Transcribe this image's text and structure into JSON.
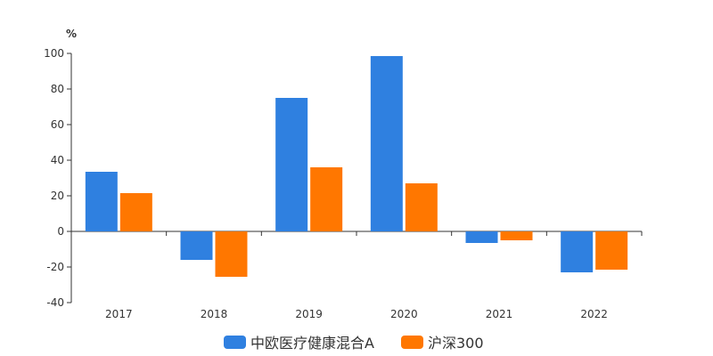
{
  "chart_data": {
    "type": "bar",
    "unit": "%",
    "categories": [
      "2017",
      "2018",
      "2019",
      "2020",
      "2021",
      "2022"
    ],
    "series": [
      {
        "name": "中欧医疗健康混合A",
        "values": [
          33.5,
          -16.0,
          75.0,
          98.5,
          -6.5,
          -23.0
        ],
        "color": "#2f80e0"
      },
      {
        "name": "沪深300",
        "values": [
          21.5,
          -25.5,
          36.0,
          27.0,
          -5.0,
          -21.5
        ],
        "color": "#ff7700"
      }
    ],
    "ylim": [
      -40,
      100
    ],
    "yticks": [
      -40,
      -20,
      0,
      20,
      40,
      60,
      80,
      100
    ],
    "ytick_labels": [
      "-40",
      "-20",
      "0",
      "20",
      "40",
      "60",
      "80",
      "100"
    ],
    "grid": false,
    "legend_position": "bottom-center"
  }
}
